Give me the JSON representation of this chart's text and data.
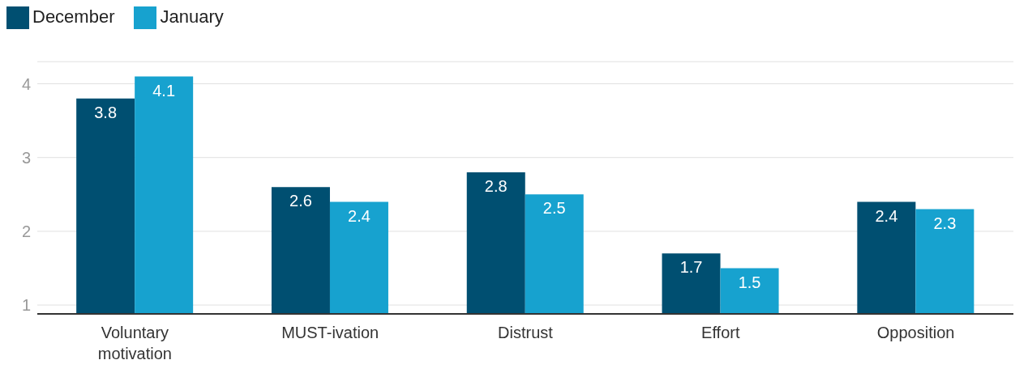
{
  "chart_data": {
    "type": "bar",
    "categories": [
      "Voluntary motivation",
      "MUST-ivation",
      "Distrust",
      "Effort",
      "Opposition"
    ],
    "series": [
      {
        "name": "December",
        "color": "#004f71",
        "values": [
          3.8,
          2.6,
          2.8,
          1.7,
          2.4
        ]
      },
      {
        "name": "January",
        "color": "#17a2cf",
        "values": [
          4.1,
          2.4,
          2.5,
          1.5,
          2.3
        ]
      }
    ],
    "ylim": [
      0.88,
      4.3
    ],
    "yticks": [
      1,
      2,
      3,
      4
    ],
    "grid": "y",
    "legend": "top left",
    "data_labels": true
  }
}
